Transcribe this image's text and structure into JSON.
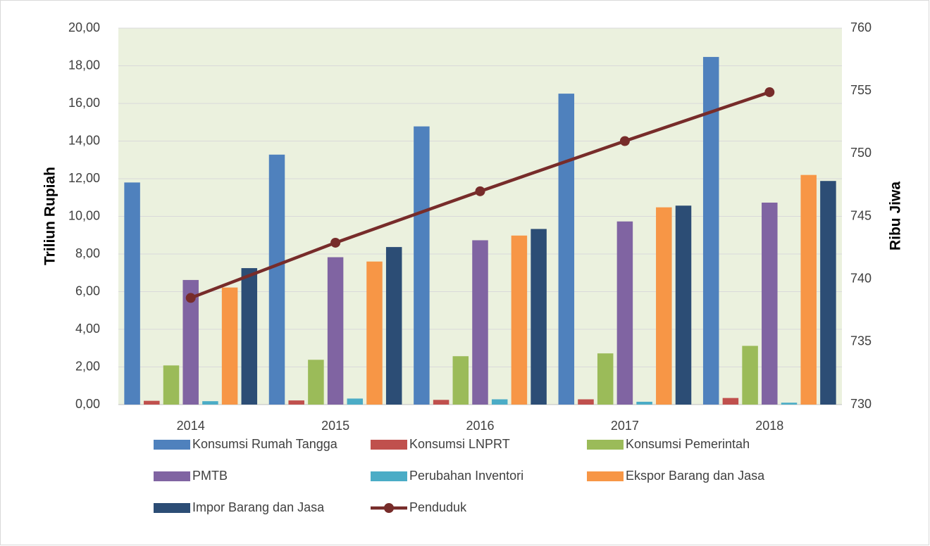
{
  "chart_data": {
    "type": "bar+line",
    "categories": [
      "2014",
      "2015",
      "2016",
      "2017",
      "2018"
    ],
    "series": [
      {
        "name": "Konsumsi Rumah Tangga",
        "color": "#4F81BD",
        "type": "bar",
        "values": [
          11.8,
          13.28,
          14.78,
          16.52,
          18.47
        ]
      },
      {
        "name": "Konsumsi LNPRT",
        "color": "#C0504D",
        "type": "bar",
        "values": [
          0.2,
          0.22,
          0.25,
          0.28,
          0.35
        ]
      },
      {
        "name": "Konsumsi Pemerintah",
        "color": "#9BBB59",
        "type": "bar",
        "values": [
          2.08,
          2.38,
          2.57,
          2.72,
          3.12
        ]
      },
      {
        "name": "PMTB",
        "color": "#8064A2",
        "type": "bar",
        "values": [
          6.62,
          7.83,
          8.73,
          9.73,
          10.73
        ]
      },
      {
        "name": "Perubahan Inventori",
        "color": "#4BACC6",
        "type": "bar",
        "values": [
          0.18,
          0.32,
          0.28,
          0.15,
          0.1
        ]
      },
      {
        "name": "Ekspor Barang dan Jasa",
        "color": "#F79646",
        "type": "bar",
        "values": [
          6.22,
          7.6,
          8.98,
          10.48,
          12.2
        ]
      },
      {
        "name": "Impor Barang dan Jasa",
        "color": "#2C4D75",
        "type": "bar",
        "values": [
          7.25,
          8.37,
          9.33,
          10.57,
          11.88
        ]
      },
      {
        "name": "Penduduk",
        "color": "#772C2A",
        "type": "line",
        "axis": "y2",
        "values": [
          738.5,
          742.9,
          747.0,
          751.0,
          754.9
        ]
      }
    ],
    "y_label": "Triliun Rupiah",
    "y2_label": "Ribu Jiwa",
    "ylim": [
      0,
      20
    ],
    "yticks": [
      {
        "value": 0,
        "label": "0,00"
      },
      {
        "value": 2,
        "label": "2,00"
      },
      {
        "value": 4,
        "label": "4,00"
      },
      {
        "value": 6,
        "label": "6,00"
      },
      {
        "value": 8,
        "label": "8,00"
      },
      {
        "value": 10,
        "label": "10,00"
      },
      {
        "value": 12,
        "label": "12,00"
      },
      {
        "value": 14,
        "label": "14,00"
      },
      {
        "value": 16,
        "label": "16,00"
      },
      {
        "value": 18,
        "label": "18,00"
      },
      {
        "value": 20,
        "label": "20,00"
      }
    ],
    "y2lim": [
      730,
      760
    ],
    "y2ticks": [
      730,
      735,
      740,
      745,
      750,
      755,
      760
    ],
    "grid": true,
    "legend": "bottom"
  }
}
